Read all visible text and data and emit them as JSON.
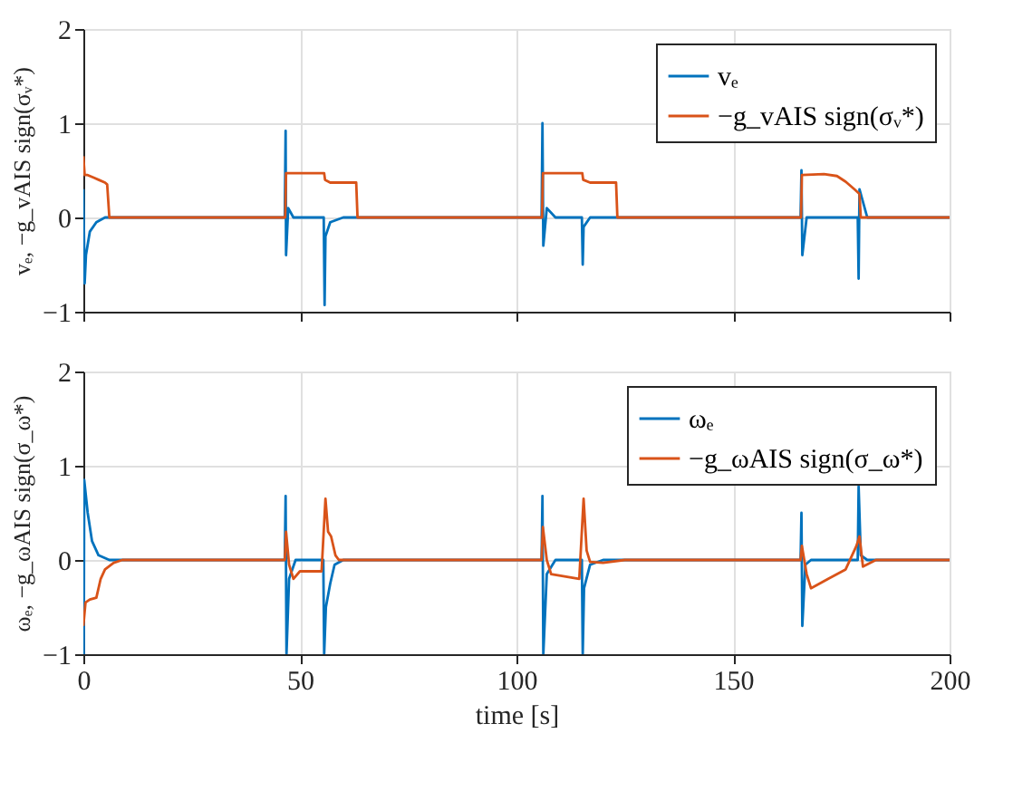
{
  "chart_data": [
    {
      "type": "line",
      "ylabel": "vₑ, −g_vAIS sign(σᵥ*)",
      "xlim": [
        0,
        200
      ],
      "xticks": [
        0,
        50,
        100,
        150,
        200
      ],
      "ylim": [
        -1,
        2
      ],
      "yticks": [
        -1,
        0,
        1,
        2
      ],
      "grid": true,
      "legend": "top right",
      "tick_labels": "y",
      "series": [
        {
          "name": "vₑ",
          "color": "#0072bd",
          "x": [
            0,
            0.3,
            0.6,
            1.5,
            3,
            5,
            20,
            46.5,
            46.7,
            46.8,
            47.3,
            48.5,
            50,
            55.5,
            55.7,
            55.9,
            57,
            60,
            80,
            105.8,
            106,
            106.2,
            107,
            109,
            115.1,
            115.3,
            115.5,
            117,
            140,
            165.6,
            165.8,
            166,
            167,
            178.8,
            179,
            179.2,
            181,
            200
          ],
          "values": [
            0.3,
            -0.7,
            -0.4,
            -0.15,
            -0.05,
            0,
            0,
            0,
            0.92,
            -0.4,
            0.1,
            0,
            0,
            0,
            -0.93,
            -0.2,
            -0.05,
            0,
            0,
            0,
            1.0,
            -0.3,
            0.1,
            0,
            0,
            -0.5,
            -0.1,
            0,
            0,
            0,
            0.5,
            -0.4,
            0,
            0,
            -0.65,
            0.3,
            0,
            0
          ]
        },
        {
          "name": "−g_vAIS sign(σᵥ*)",
          "color": "#d95319",
          "x": [
            0,
            0.3,
            1,
            2.5,
            3.5,
            5,
            5.5,
            6,
            20,
            46.6,
            46.8,
            55.6,
            55.8,
            57,
            63,
            63.3,
            80,
            105.9,
            106.1,
            115.2,
            115.4,
            117,
            123,
            123.3,
            140,
            165.7,
            165.9,
            171,
            174,
            176,
            178,
            179.2,
            179.5,
            200
          ],
          "values": [
            0.65,
            0.45,
            0.45,
            0.42,
            0.4,
            0.37,
            0.35,
            0,
            0,
            0,
            0.47,
            0.47,
            0.4,
            0.37,
            0.37,
            0,
            0,
            0,
            0.47,
            0.47,
            0.4,
            0.37,
            0.37,
            0,
            0,
            0,
            0.45,
            0.46,
            0.44,
            0.38,
            0.3,
            0.25,
            0,
            0
          ]
        }
      ]
    },
    {
      "type": "line",
      "xlabel": "time [s]",
      "ylabel": "ωₑ, −g_ωAIS sign(σ_ω*)",
      "xlim": [
        0,
        200
      ],
      "xticks": [
        0,
        50,
        100,
        150,
        200
      ],
      "ylim": [
        -1,
        2
      ],
      "yticks": [
        -1,
        0,
        1,
        2
      ],
      "grid": true,
      "legend": "top right",
      "series": [
        {
          "name": "ωₑ",
          "color": "#0072bd",
          "x": [
            0,
            0.1,
            0.2,
            1,
            2,
            3.5,
            6,
            20,
            46.5,
            46.7,
            46.9,
            47.5,
            49,
            55.4,
            55.6,
            56,
            57,
            58,
            60,
            80,
            105.8,
            106,
            106.2,
            107,
            109,
            115.1,
            115.3,
            115.6,
            117,
            120,
            140,
            165.6,
            165.8,
            166,
            166.7,
            168,
            178.8,
            179,
            179.5,
            181,
            200
          ],
          "values": [
            0,
            -1,
            0.85,
            0.5,
            0.2,
            0.05,
            0,
            0,
            0,
            0.68,
            -1,
            -0.2,
            0,
            0,
            -1,
            -0.5,
            -0.25,
            -0.05,
            0,
            0,
            0,
            0.68,
            -1,
            -0.15,
            0,
            0,
            -1,
            -0.3,
            -0.05,
            0,
            0,
            0,
            0.5,
            -0.7,
            -0.05,
            0,
            0,
            0.78,
            0.05,
            0,
            0
          ]
        },
        {
          "name": "−g_ωAIS sign(σ_ω*)",
          "color": "#d95319",
          "x": [
            0,
            0.5,
            1.5,
            3,
            4,
            5,
            7,
            9,
            20,
            46.5,
            46.8,
            47.5,
            48.5,
            50,
            55,
            55.9,
            56.5,
            57.2,
            58.2,
            59,
            80,
            105.8,
            106.1,
            107,
            108,
            114.5,
            115.5,
            116.2,
            117,
            120,
            125,
            140,
            165.6,
            165.9,
            167,
            168,
            172,
            176,
            178.5,
            179.2,
            180,
            183,
            200
          ],
          "values": [
            -0.7,
            -0.45,
            -0.42,
            -0.4,
            -0.2,
            -0.1,
            -0.03,
            0,
            0,
            0,
            0.3,
            -0.05,
            -0.2,
            -0.12,
            -0.12,
            0.65,
            0.3,
            0.25,
            0.05,
            0,
            0,
            0,
            0.35,
            0,
            -0.15,
            -0.2,
            0.65,
            0.1,
            -0.02,
            -0.03,
            0,
            0,
            0,
            0.15,
            -0.15,
            -0.3,
            -0.2,
            -0.1,
            0.15,
            0.25,
            -0.07,
            0,
            0
          ]
        }
      ]
    }
  ]
}
